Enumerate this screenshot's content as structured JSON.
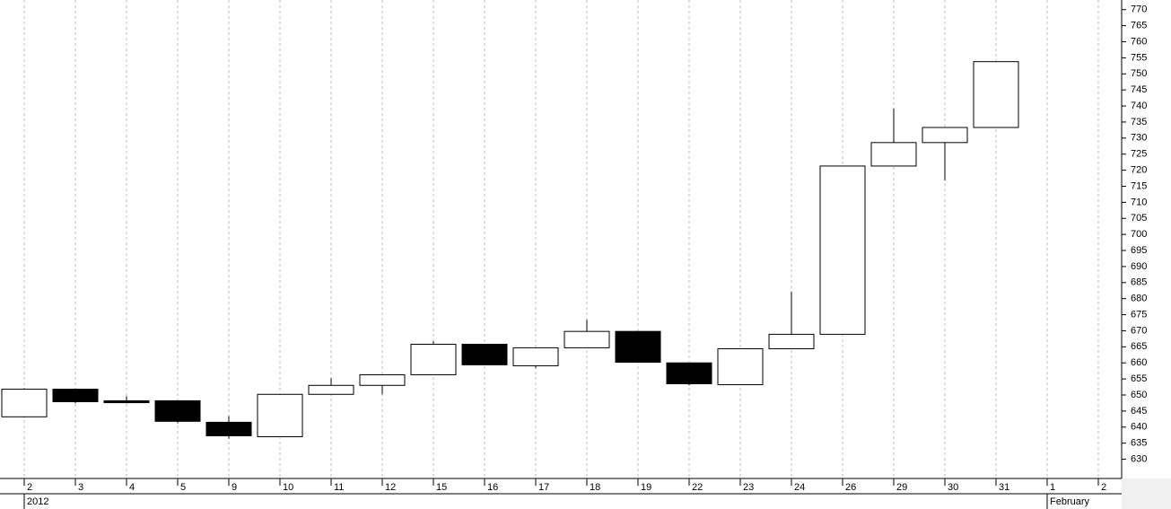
{
  "chart_data": {
    "type": "candlestick",
    "categories": [
      "2",
      "3",
      "4",
      "5",
      "9",
      "10",
      "11",
      "12",
      "15",
      "16",
      "17",
      "18",
      "19",
      "22",
      "23",
      "24",
      "26",
      "29",
      "30",
      "31",
      "1",
      "2"
    ],
    "periods": [
      {
        "label": "2012",
        "first_category": 0
      },
      {
        "label": "February",
        "first_category": 20
      }
    ],
    "open": [
      643.2,
      651.8,
      648.2,
      648.2,
      641.5,
      637.0,
      650.2,
      653.0,
      656.3,
      665.8,
      659.1,
      664.7,
      669.8,
      660.0,
      653.2,
      664.4,
      668.9,
      721.3,
      728.6,
      733.3,
      null,
      null
    ],
    "high": [
      652.1,
      652.0,
      649.6,
      648.2,
      643.4,
      650.2,
      655.2,
      656.3,
      666.7,
      665.8,
      664.7,
      673.4,
      669.8,
      660.0,
      664.4,
      682.1,
      721.3,
      739.2,
      733.3,
      753.8,
      null,
      null
    ],
    "low": [
      643.0,
      647.4,
      647.4,
      641.2,
      636.4,
      636.9,
      650.2,
      650.2,
      656.3,
      659.4,
      658.3,
      664.7,
      660.2,
      653.0,
      653.2,
      664.4,
      668.9,
      721.3,
      716.8,
      733.3,
      null,
      null
    ],
    "close": [
      651.8,
      647.9,
      647.6,
      641.8,
      637.3,
      650.2,
      653.0,
      656.3,
      665.8,
      659.4,
      664.7,
      669.8,
      660.2,
      653.5,
      664.4,
      668.9,
      721.3,
      728.6,
      733.3,
      753.8,
      null,
      null
    ],
    "up_color": "#ffffff",
    "down_color": "#000000",
    "edge_color": "#000000",
    "ylim": [
      624,
      773
    ],
    "yticks": [
      630,
      635,
      640,
      645,
      650,
      655,
      660,
      665,
      670,
      675,
      680,
      685,
      690,
      695,
      700,
      705,
      710,
      715,
      720,
      725,
      730,
      735,
      740,
      745,
      750,
      755,
      760,
      765,
      770
    ],
    "grid": true
  }
}
